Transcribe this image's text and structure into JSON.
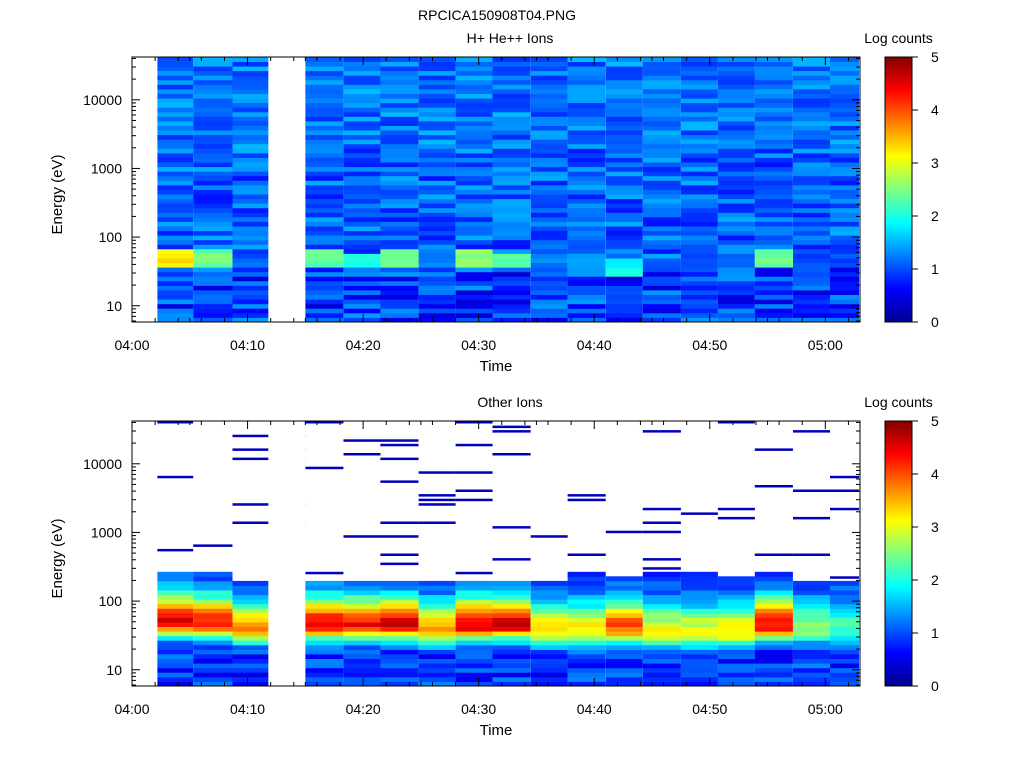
{
  "figure": {
    "title": "RPCICA150908T04.PNG"
  },
  "chart_data": [
    {
      "type": "heatmap",
      "title": "H+ He++ Ions",
      "xlabel": "Time",
      "ylabel": "Energy (eV)",
      "y_scale": "log",
      "ylim": [
        5.8,
        42000
      ],
      "xlim_minutes": [
        0,
        63
      ],
      "x_ticks": [
        "04:00",
        "04:10",
        "04:20",
        "04:30",
        "04:40",
        "04:50",
        "05:00"
      ],
      "y_ticks": [
        "10",
        "100",
        "1000",
        "10000"
      ],
      "colorbar": {
        "label": "Log counts",
        "range": [
          0,
          5
        ],
        "ticks": [
          "0",
          "1",
          "2",
          "3",
          "4",
          "5"
        ]
      },
      "time_columns_minutes": [
        2.2,
        5.3,
        8.7,
        15.0,
        18.3,
        21.5,
        24.8,
        28.0,
        31.2,
        34.5,
        37.7,
        41.0,
        44.2,
        47.5,
        50.7,
        53.9,
        57.2,
        60.4
      ],
      "data_gap_minutes": [
        11.8,
        15.0
      ],
      "background_log_counts": 1.1,
      "low_energy_band": [
        {
          "t": 2.2,
          "E": 50,
          "v": 3.2
        },
        {
          "t": 5.3,
          "E": 48,
          "v": 2.4
        },
        {
          "t": 8.7,
          "E": 45,
          "v": 1.1
        },
        {
          "t": 15.0,
          "E": 48,
          "v": 2.3
        },
        {
          "t": 18.3,
          "E": 45,
          "v": 2.0
        },
        {
          "t": 21.5,
          "E": 50,
          "v": 2.5
        },
        {
          "t": 24.8,
          "E": 45,
          "v": 1.3
        },
        {
          "t": 28.0,
          "E": 50,
          "v": 2.6
        },
        {
          "t": 31.2,
          "E": 45,
          "v": 2.3
        },
        {
          "t": 34.5,
          "E": 40,
          "v": 1.2
        },
        {
          "t": 37.7,
          "E": 40,
          "v": 1.5
        },
        {
          "t": 41.0,
          "E": 38,
          "v": 1.9
        },
        {
          "t": 44.2,
          "E": 40,
          "v": 1.1
        },
        {
          "t": 47.5,
          "E": 45,
          "v": 1.0
        },
        {
          "t": 50.7,
          "E": 45,
          "v": 1.0
        },
        {
          "t": 53.9,
          "E": 50,
          "v": 2.4
        },
        {
          "t": 57.2,
          "E": 45,
          "v": 1.0
        },
        {
          "t": 60.4,
          "E": 45,
          "v": 1.0
        }
      ]
    },
    {
      "type": "heatmap",
      "title": "Other Ions",
      "xlabel": "Time",
      "ylabel": "Energy (eV)",
      "y_scale": "log",
      "ylim": [
        5.8,
        42000
      ],
      "xlim_minutes": [
        0,
        63
      ],
      "x_ticks": [
        "04:00",
        "04:10",
        "04:20",
        "04:30",
        "04:40",
        "04:50",
        "05:00"
      ],
      "y_ticks": [
        "10",
        "100",
        "1000",
        "10000"
      ],
      "colorbar": {
        "label": "Log counts",
        "range": [
          0,
          5
        ],
        "ticks": [
          "0",
          "1",
          "2",
          "3",
          "4",
          "5"
        ]
      },
      "time_columns_minutes": [
        2.2,
        5.3,
        8.7,
        15.0,
        18.3,
        21.5,
        24.8,
        28.0,
        31.2,
        34.5,
        37.7,
        41.0,
        44.2,
        47.5,
        50.7,
        53.9,
        57.2,
        60.4
      ],
      "data_gap_minutes": [
        11.8,
        15.0
      ],
      "dense_region_top_eV": [
        280,
        250,
        210,
        200,
        195,
        190,
        210,
        200,
        200,
        210,
        250,
        230,
        280,
        250,
        230,
        250,
        210,
        210
      ],
      "peak_energy_eV": [
        50,
        48,
        40,
        45,
        45,
        45,
        38,
        45,
        45,
        38,
        38,
        42,
        35,
        35,
        35,
        45,
        40,
        40
      ],
      "peak_log_counts": [
        4.6,
        4.3,
        3.6,
        4.5,
        4.4,
        4.6,
        3.7,
        4.6,
        4.6,
        3.4,
        3.3,
        4.0,
        3.2,
        3.1,
        3.3,
        4.4,
        2.6,
        2.2
      ],
      "sparse_high_energy_events": "single-count traces (log counts ~0.3) scattered between ~300 eV and ~40000 eV"
    }
  ]
}
